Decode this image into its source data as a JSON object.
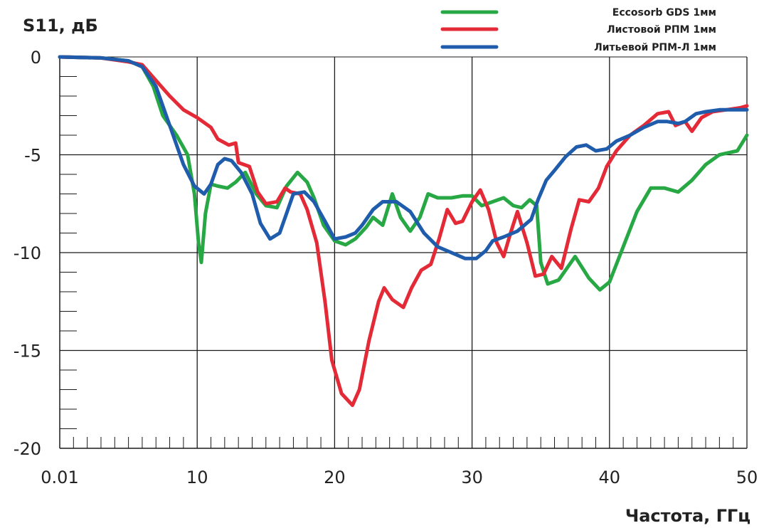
{
  "chart_data": {
    "type": "line",
    "title": "",
    "ylabel": "S11, дБ",
    "xlabel": "Частота, ГГц",
    "xlim": [
      0,
      50
    ],
    "ylim": [
      -20,
      0
    ],
    "x_ticks": [
      {
        "value": 0,
        "label": "0.01"
      },
      {
        "value": 10,
        "label": "10"
      },
      {
        "value": 20,
        "label": "20"
      },
      {
        "value": 30,
        "label": "30"
      },
      {
        "value": 40,
        "label": "40"
      },
      {
        "value": 50,
        "label": "50"
      }
    ],
    "y_ticks": [
      {
        "value": 0,
        "label": "0"
      },
      {
        "value": -5,
        "label": "-5"
      },
      {
        "value": -10,
        "label": "-10"
      },
      {
        "value": -15,
        "label": "-15"
      },
      {
        "value": -20,
        "label": "-20"
      }
    ],
    "grid": true,
    "legend_position": "top-right",
    "series": [
      {
        "name": "Eccosorb GDS 1мм",
        "color": "#27a845",
        "points": [
          [
            0,
            0
          ],
          [
            3,
            -0.05
          ],
          [
            5,
            -0.2
          ],
          [
            6,
            -0.5
          ],
          [
            6.8,
            -1.5
          ],
          [
            7.5,
            -3
          ],
          [
            8.5,
            -4
          ],
          [
            9.3,
            -5
          ],
          [
            9.8,
            -7
          ],
          [
            10.1,
            -9.5
          ],
          [
            10.3,
            -10.5
          ],
          [
            10.6,
            -8
          ],
          [
            11,
            -6.5
          ],
          [
            11.5,
            -6.6
          ],
          [
            12.2,
            -6.7
          ],
          [
            12.8,
            -6.4
          ],
          [
            13.5,
            -5.9
          ],
          [
            14.3,
            -7
          ],
          [
            15,
            -7.6
          ],
          [
            15.8,
            -7.7
          ],
          [
            16.5,
            -6.6
          ],
          [
            17.3,
            -5.9
          ],
          [
            18,
            -6.4
          ],
          [
            18.5,
            -7.2
          ],
          [
            19.2,
            -8.6
          ],
          [
            20,
            -9.4
          ],
          [
            20.8,
            -9.6
          ],
          [
            21.5,
            -9.3
          ],
          [
            22.3,
            -8.7
          ],
          [
            22.8,
            -8.2
          ],
          [
            23.5,
            -8.6
          ],
          [
            24.2,
            -7
          ],
          [
            24.8,
            -8.2
          ],
          [
            25.5,
            -8.9
          ],
          [
            26.2,
            -8.2
          ],
          [
            26.8,
            -7
          ],
          [
            27.5,
            -7.2
          ],
          [
            28.5,
            -7.2
          ],
          [
            29.3,
            -7.1
          ],
          [
            30,
            -7.1
          ],
          [
            30.7,
            -7.6
          ],
          [
            31.5,
            -7.4
          ],
          [
            32.3,
            -7.2
          ],
          [
            33,
            -7.6
          ],
          [
            33.6,
            -7.7
          ],
          [
            34.2,
            -7.3
          ],
          [
            34.7,
            -7.6
          ],
          [
            35,
            -10.5
          ],
          [
            35.5,
            -11.6
          ],
          [
            36.3,
            -11.4
          ],
          [
            37.5,
            -10.2
          ],
          [
            38.5,
            -11.3
          ],
          [
            39.3,
            -11.9
          ],
          [
            40,
            -11.5
          ],
          [
            41,
            -9.7
          ],
          [
            42,
            -7.9
          ],
          [
            43,
            -6.7
          ],
          [
            44,
            -6.7
          ],
          [
            45,
            -6.9
          ],
          [
            46,
            -6.3
          ],
          [
            47,
            -5.5
          ],
          [
            48,
            -5
          ],
          [
            49.3,
            -4.8
          ],
          [
            50,
            -4
          ]
        ]
      },
      {
        "name": "Листовой РПМ 1мм",
        "color": "#e32a36",
        "points": [
          [
            0,
            0
          ],
          [
            3,
            -0.05
          ],
          [
            5,
            -0.25
          ],
          [
            6,
            -0.4
          ],
          [
            7,
            -1.2
          ],
          [
            8,
            -2
          ],
          [
            9,
            -2.7
          ],
          [
            10,
            -3.1
          ],
          [
            11,
            -3.6
          ],
          [
            11.5,
            -4.2
          ],
          [
            12.3,
            -4.5
          ],
          [
            12.8,
            -4.4
          ],
          [
            13,
            -5.4
          ],
          [
            13.8,
            -5.6
          ],
          [
            14.4,
            -6.9
          ],
          [
            15,
            -7.5
          ],
          [
            15.8,
            -7.4
          ],
          [
            16.4,
            -6.7
          ],
          [
            16.8,
            -6.9
          ],
          [
            17.5,
            -7
          ],
          [
            18,
            -7.8
          ],
          [
            18.7,
            -9.5
          ],
          [
            19.3,
            -12.5
          ],
          [
            19.8,
            -15.5
          ],
          [
            20.5,
            -17.2
          ],
          [
            21.3,
            -17.8
          ],
          [
            21.8,
            -17
          ],
          [
            22.5,
            -14.5
          ],
          [
            23.2,
            -12.5
          ],
          [
            23.6,
            -11.8
          ],
          [
            24.2,
            -12.4
          ],
          [
            25,
            -12.8
          ],
          [
            25.6,
            -11.8
          ],
          [
            26.3,
            -10.9
          ],
          [
            27,
            -10.6
          ],
          [
            27.6,
            -9.3
          ],
          [
            28.2,
            -7.8
          ],
          [
            28.8,
            -8.5
          ],
          [
            29.3,
            -8.4
          ],
          [
            30,
            -7.4
          ],
          [
            30.6,
            -6.8
          ],
          [
            31.2,
            -7.8
          ],
          [
            31.8,
            -9.5
          ],
          [
            32.3,
            -10.2
          ],
          [
            32.8,
            -9
          ],
          [
            33.3,
            -7.9
          ],
          [
            34,
            -9.5
          ],
          [
            34.6,
            -11.2
          ],
          [
            35.2,
            -11.1
          ],
          [
            35.8,
            -10.2
          ],
          [
            36.5,
            -10.8
          ],
          [
            37.2,
            -8.8
          ],
          [
            37.8,
            -7.3
          ],
          [
            38.5,
            -7.4
          ],
          [
            39.2,
            -6.7
          ],
          [
            39.8,
            -5.6
          ],
          [
            40.5,
            -4.8
          ],
          [
            41.5,
            -4
          ],
          [
            42.5,
            -3.5
          ],
          [
            43.5,
            -2.9
          ],
          [
            44.3,
            -2.8
          ],
          [
            44.8,
            -3.5
          ],
          [
            45.5,
            -3.3
          ],
          [
            46,
            -3.8
          ],
          [
            46.7,
            -3.1
          ],
          [
            47.5,
            -2.8
          ],
          [
            48.5,
            -2.7
          ],
          [
            49.5,
            -2.6
          ],
          [
            50,
            -2.5
          ]
        ]
      },
      {
        "name": "Литьевой РПМ-Л 1мм",
        "color": "#1f5cab",
        "points": [
          [
            0,
            0
          ],
          [
            3,
            -0.05
          ],
          [
            5,
            -0.2
          ],
          [
            6,
            -0.5
          ],
          [
            7,
            -1.5
          ],
          [
            8,
            -3.5
          ],
          [
            9,
            -5.5
          ],
          [
            9.8,
            -6.6
          ],
          [
            10.5,
            -7
          ],
          [
            11,
            -6.5
          ],
          [
            11.5,
            -5.5
          ],
          [
            12,
            -5.2
          ],
          [
            12.5,
            -5.3
          ],
          [
            13.2,
            -5.9
          ],
          [
            14,
            -7
          ],
          [
            14.6,
            -8.5
          ],
          [
            15.3,
            -9.3
          ],
          [
            16,
            -9
          ],
          [
            16.5,
            -8
          ],
          [
            17,
            -7
          ],
          [
            17.8,
            -6.9
          ],
          [
            18.5,
            -7.4
          ],
          [
            19.3,
            -8.4
          ],
          [
            20,
            -9.3
          ],
          [
            20.8,
            -9.2
          ],
          [
            21.5,
            -9
          ],
          [
            22,
            -8.6
          ],
          [
            22.8,
            -7.8
          ],
          [
            23.5,
            -7.4
          ],
          [
            24.5,
            -7.4
          ],
          [
            25.5,
            -7.9
          ],
          [
            26.5,
            -9
          ],
          [
            27.5,
            -9.7
          ],
          [
            28.5,
            -10
          ],
          [
            29.5,
            -10.3
          ],
          [
            30.3,
            -10.3
          ],
          [
            31,
            -9.9
          ],
          [
            31.5,
            -9.4
          ],
          [
            32.3,
            -9.2
          ],
          [
            33.3,
            -8.9
          ],
          [
            34.3,
            -8.3
          ],
          [
            34.8,
            -7.3
          ],
          [
            35.4,
            -6.3
          ],
          [
            36,
            -5.8
          ],
          [
            36.8,
            -5.1
          ],
          [
            37.6,
            -4.6
          ],
          [
            38.3,
            -4.5
          ],
          [
            39,
            -4.8
          ],
          [
            39.8,
            -4.7
          ],
          [
            40.5,
            -4.3
          ],
          [
            41.5,
            -4
          ],
          [
            42.5,
            -3.6
          ],
          [
            43.5,
            -3.3
          ],
          [
            44.2,
            -3.3
          ],
          [
            45,
            -3.4
          ],
          [
            45.5,
            -3.3
          ],
          [
            46.3,
            -2.9
          ],
          [
            47,
            -2.8
          ],
          [
            48,
            -2.7
          ],
          [
            49,
            -2.7
          ],
          [
            50,
            -2.7
          ]
        ]
      }
    ]
  }
}
